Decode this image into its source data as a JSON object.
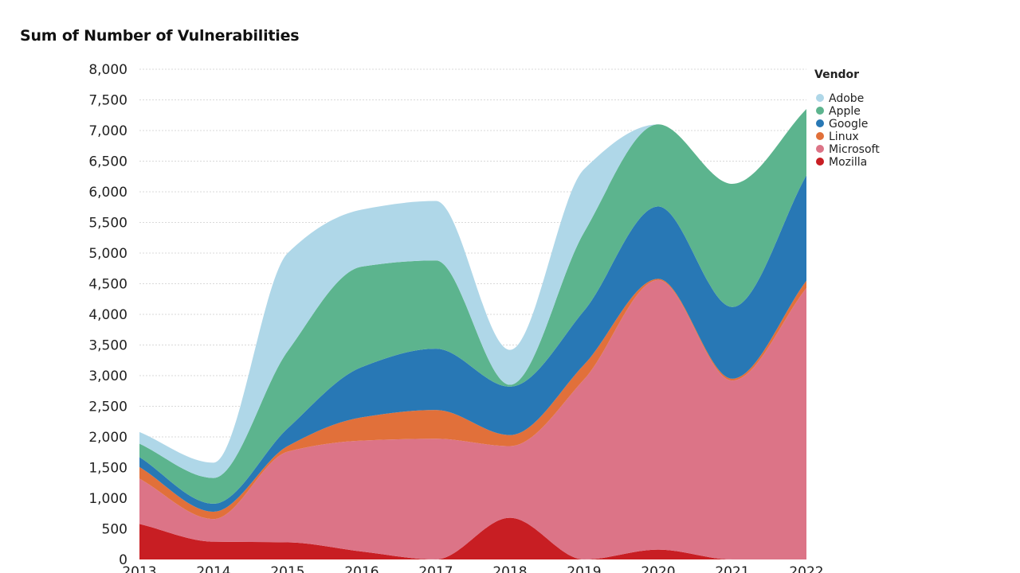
{
  "chart_data": {
    "type": "area",
    "stacked": true,
    "title": "Sum of Number of Vulnerabilities",
    "x": [
      "2013",
      "2014",
      "2015",
      "2016",
      "2017",
      "2018",
      "2019",
      "2020",
      "2021",
      "2022"
    ],
    "ylim": [
      0,
      8000
    ],
    "yticks": [
      0,
      500,
      1000,
      1500,
      2000,
      2500,
      3000,
      3500,
      4000,
      4500,
      5000,
      5500,
      6000,
      6500,
      7000,
      7500,
      8000
    ],
    "grid": true,
    "legend_title": "Vendor",
    "legend_position": "top-right",
    "series": [
      {
        "name": "Mozilla",
        "color": "#c81e23",
        "values": [
          580,
          290,
          280,
          130,
          0,
          680,
          0,
          160,
          0,
          0
        ]
      },
      {
        "name": "Microsoft",
        "color": "#dc7487",
        "values": [
          740,
          370,
          1480,
          1810,
          1970,
          1170,
          2940,
          4400,
          2920,
          4430
        ]
      },
      {
        "name": "Linux",
        "color": "#e1703a",
        "values": [
          190,
          120,
          90,
          380,
          470,
          180,
          240,
          20,
          30,
          120
        ]
      },
      {
        "name": "Google",
        "color": "#2878b5",
        "values": [
          160,
          130,
          290,
          820,
          1000,
          790,
          880,
          1180,
          1170,
          1720
        ]
      },
      {
        "name": "Apple",
        "color": "#5cb48e",
        "values": [
          220,
          420,
          1260,
          1640,
          1440,
          30,
          1280,
          1340,
          2010,
          1080
        ]
      },
      {
        "name": "Adobe",
        "color": "#afd7e8",
        "values": [
          190,
          250,
          1600,
          930,
          970,
          570,
          1030,
          0,
          0,
          0
        ]
      }
    ]
  }
}
